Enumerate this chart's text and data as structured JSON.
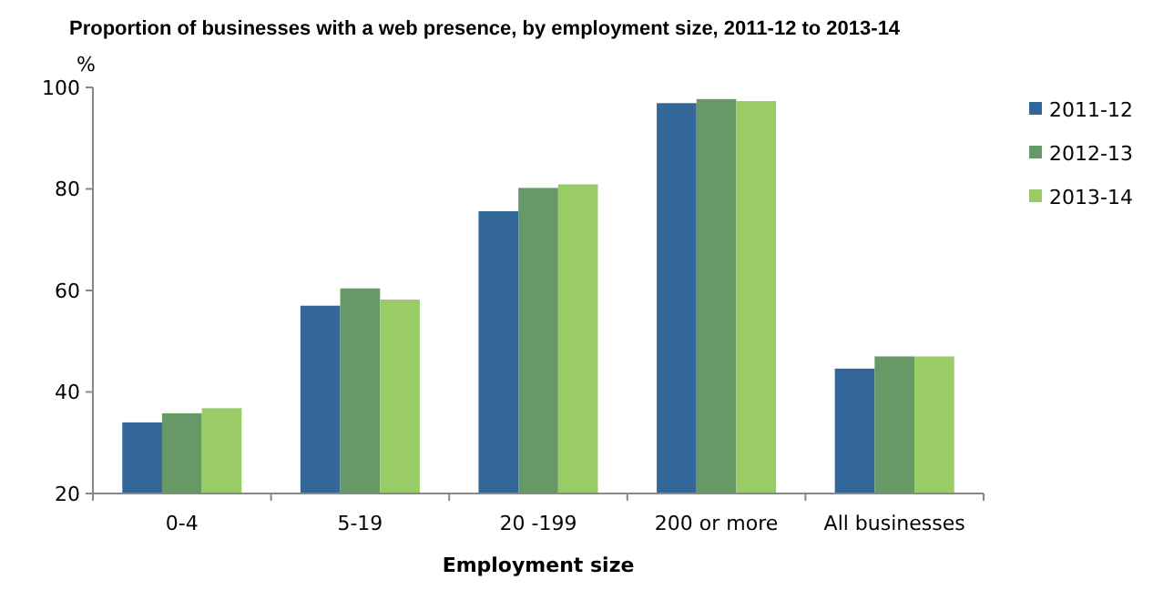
{
  "chart_data": {
    "type": "bar",
    "title": "Proportion of businesses with a  web presence, by employment size, 2011-12  to 2013-14",
    "xlabel": "Employment size",
    "ylabel": "%",
    "categories": [
      "0-4",
      "5-19",
      "20 -199",
      "200 or more",
      "All businesses"
    ],
    "series": [
      {
        "name": "2011-12",
        "color": "#336699",
        "values": [
          34,
          57,
          75.6,
          96.9,
          44.6
        ]
      },
      {
        "name": "2012-13",
        "color": "#669966",
        "values": [
          35.8,
          60.4,
          80.2,
          97.7,
          47
        ]
      },
      {
        "name": "2013-14",
        "color": "#99cc66",
        "values": [
          36.8,
          58.2,
          80.9,
          97.3,
          47
        ]
      }
    ],
    "ylim": [
      20,
      100
    ],
    "yticks": [
      20,
      40,
      60,
      80,
      100
    ],
    "grid": false,
    "legend": "right"
  }
}
